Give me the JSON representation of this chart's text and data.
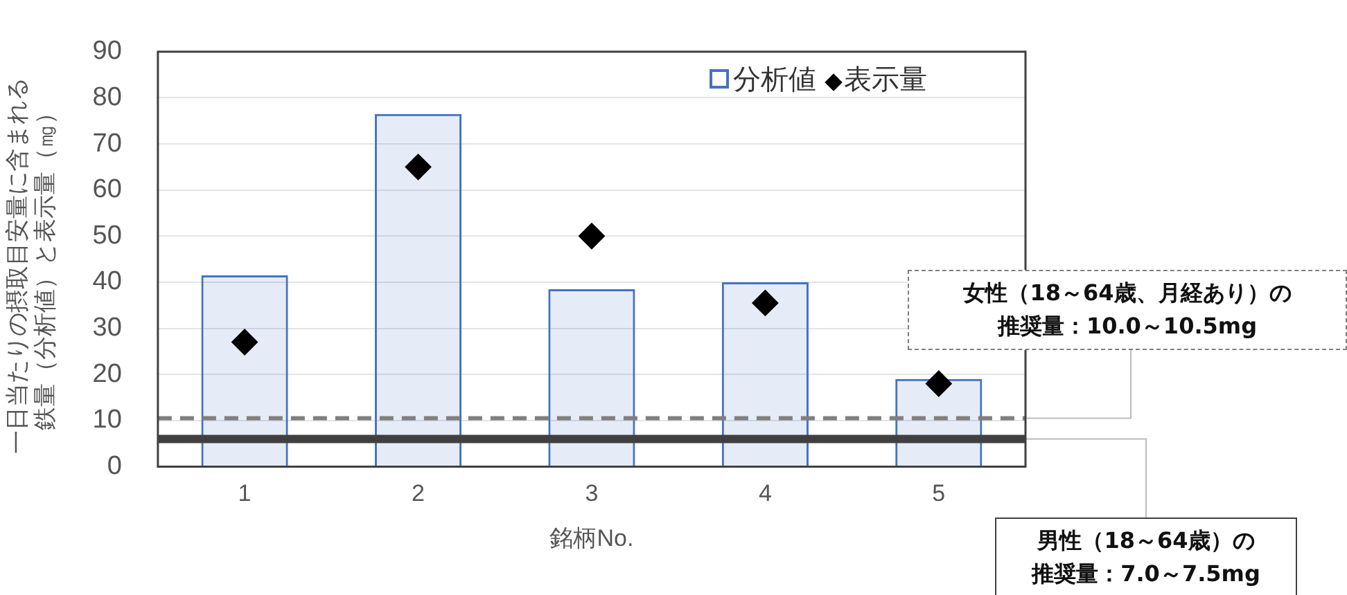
{
  "chart_data": {
    "type": "bar",
    "categories": [
      "1",
      "2",
      "3",
      "4",
      "5"
    ],
    "xlabel": "銘柄No.",
    "ylabel": "一日当たりの摂取目安量に含まれる鉄量（分析値）と表示量（㎎）",
    "series": [
      {
        "name": "分析値",
        "color": "#4472c4",
        "values": [
          41.5,
          76.5,
          38.5,
          40,
          19
        ]
      },
      {
        "name": "表示量",
        "type": "scatter",
        "color": "#000000",
        "marker": "diamond",
        "x": [
          "1",
          "2",
          "3",
          "4",
          "5"
        ],
        "values": [
          27,
          65,
          50,
          35.5,
          18
        ]
      }
    ],
    "ylim": [
      0,
      90
    ],
    "yticks": [
      0,
      10,
      20,
      30,
      40,
      50,
      60,
      70,
      80,
      90
    ],
    "grid": "y",
    "legend": "top right",
    "ref_lines": [
      {
        "axis": "y",
        "value": 10.5,
        "label": "女性（18～64歳、月経あり）の推奨量：10.0～10.5mg",
        "color": "#7f7f7f",
        "line_style": "dashed"
      },
      {
        "axis": "y",
        "value": 6,
        "label": "男性（18～64歳）の推奨量：7.0～7.5mg",
        "color": "#404040",
        "line_style": "solid"
      }
    ]
  }
}
